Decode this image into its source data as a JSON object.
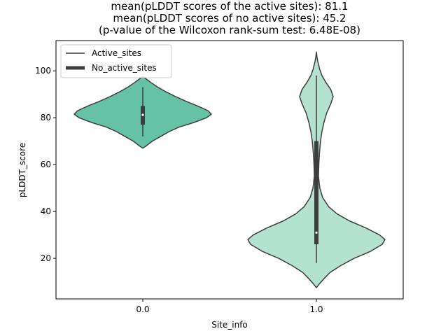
{
  "chart_data": {
    "type": "violin",
    "title_lines": [
      "mean(pLDDT scores of the active sites): 81.1",
      "mean(pLDDT scores of no active sites): 45.2",
      "(p-value of the Wilcoxon rank-sum test: 6.48E-08)"
    ],
    "xlabel": "Site_info",
    "ylabel": "pLDDT_score",
    "categories": [
      "0.0",
      "1.0"
    ],
    "ylim": [
      2.7,
      112.9
    ],
    "yticks": [
      20,
      40,
      60,
      80,
      100
    ],
    "yticklabels": [
      "20",
      "40",
      "60",
      "80",
      "100"
    ],
    "legend": {
      "position": "upper-left",
      "entries": [
        "Active_sites",
        "No_active_sites"
      ]
    },
    "colors": {
      "violin_0": "#66c2a5",
      "violin_1": "#b3e2d0",
      "edge": "#3d3d3d",
      "box": "#3d3d3d",
      "median": "#ffffff"
    },
    "series": [
      {
        "name": "0.0",
        "profile": [
          [
            67,
            0.0
          ],
          [
            68,
            0.05
          ],
          [
            70,
            0.14
          ],
          [
            72,
            0.26
          ],
          [
            74,
            0.38
          ],
          [
            76,
            0.53
          ],
          [
            78,
            0.75
          ],
          [
            80,
            0.93
          ],
          [
            81.5,
            1.0
          ],
          [
            83,
            0.95
          ],
          [
            85,
            0.8
          ],
          [
            87,
            0.63
          ],
          [
            89,
            0.48
          ],
          [
            91,
            0.34
          ],
          [
            93,
            0.22
          ],
          [
            95,
            0.12
          ],
          [
            96.5,
            0.05
          ],
          [
            97.5,
            0.0
          ]
        ],
        "whisker": [
          72,
          93
        ],
        "iqr": [
          77,
          85
        ],
        "median": 81.2
      },
      {
        "name": "1.0",
        "profile": [
          [
            7.5,
            0.0
          ],
          [
            9,
            0.04
          ],
          [
            11,
            0.1
          ],
          [
            14,
            0.2
          ],
          [
            17,
            0.36
          ],
          [
            20,
            0.55
          ],
          [
            23,
            0.79
          ],
          [
            26,
            0.96
          ],
          [
            28,
            1.0
          ],
          [
            30,
            0.92
          ],
          [
            33,
            0.72
          ],
          [
            36,
            0.48
          ],
          [
            39,
            0.3
          ],
          [
            42,
            0.18
          ],
          [
            46,
            0.09
          ],
          [
            50,
            0.05
          ],
          [
            55,
            0.03
          ],
          [
            60,
            0.035
          ],
          [
            65,
            0.045
          ],
          [
            70,
            0.06
          ],
          [
            74,
            0.08
          ],
          [
            78,
            0.11
          ],
          [
            82,
            0.15
          ],
          [
            86,
            0.21
          ],
          [
            89,
            0.245
          ],
          [
            92,
            0.21
          ],
          [
            95,
            0.14
          ],
          [
            98,
            0.08
          ],
          [
            101,
            0.045
          ],
          [
            104,
            0.02
          ],
          [
            106,
            0.008
          ],
          [
            108,
            0.0
          ]
        ],
        "whisker": [
          18,
          98
        ],
        "iqr": [
          26,
          70
        ],
        "median": 31
      }
    ]
  }
}
